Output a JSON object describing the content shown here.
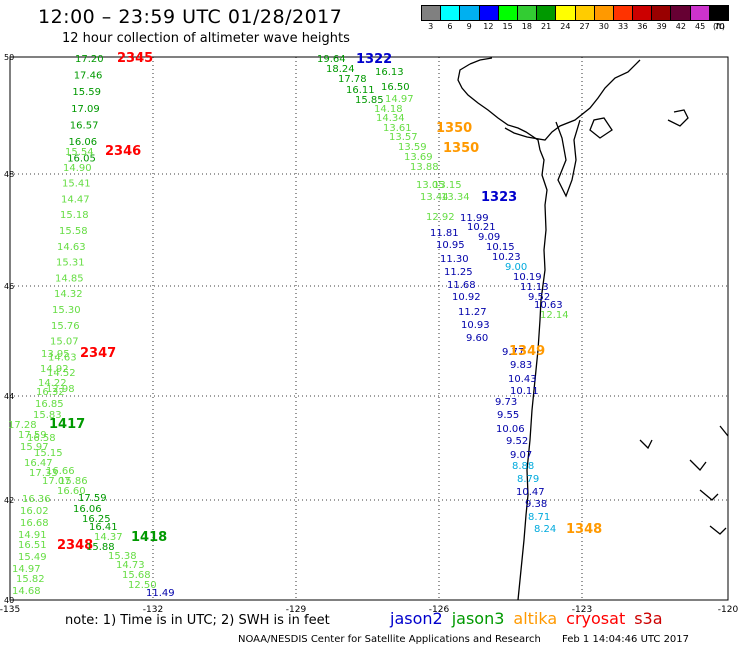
{
  "header": {
    "title": "12:00 – 23:59 UTC 01/28/2017",
    "subtitle": "12 hour collection of altimeter wave heights"
  },
  "color_scale": {
    "colors": [
      "#808080",
      "#00ffff",
      "#00b0f0",
      "#0000ff",
      "#00ff00",
      "#33cc33",
      "#009900",
      "#ffff00",
      "#ffcc00",
      "#ff9900",
      "#ff3300",
      "#cc0000",
      "#990000",
      "#660033",
      "#cc33cc",
      "#000000"
    ],
    "labels": [
      "3",
      "6",
      "9",
      "12",
      "15",
      "18",
      "21",
      "24",
      "27",
      "30",
      "33",
      "36",
      "39",
      "42",
      "45",
      "70",
      "(ft)"
    ]
  },
  "axes": {
    "lon_labels": [
      "-135",
      "-132",
      "-129",
      "-126",
      "-123",
      "-120"
    ],
    "lat_labels": [
      "50",
      "48",
      "46",
      "44",
      "42",
      "40"
    ]
  },
  "passes": [
    {
      "label": "2345",
      "satellite": "cryosat",
      "color": "#ff0000",
      "value_color": "#009900",
      "values": [
        "17.20",
        "17.46",
        "15.59",
        "17.09",
        "16.57",
        "16.06",
        "16.05"
      ]
    },
    {
      "label": "2346",
      "satellite": "cryosat",
      "color": "#ff0000",
      "value_color": "#66dd44",
      "values": [
        "15.54",
        "14.90",
        "15.41",
        "14.47",
        "15.18",
        "15.58",
        "14.63",
        "15.31",
        "14.85",
        "14.32",
        "15.30",
        "15.76",
        "15.07",
        "14.63",
        "14.52",
        "12.98"
      ]
    },
    {
      "label": "2347",
      "satellite": "cryosat",
      "color": "#ff0000",
      "value_color": "#66dd44",
      "values": [
        "13.95",
        "14.92",
        "14.22",
        "16.32",
        "16.85",
        "15.83",
        "17.28",
        "17.59",
        "16.58",
        "15.97",
        "15.15",
        "16.47",
        "17.33",
        "16.66",
        "17.07",
        "15.86",
        "16.60",
        "16.36",
        "16.02",
        "16.68"
      ]
    },
    {
      "label": "2348",
      "satellite": "cryosat",
      "color": "#ff0000",
      "value_color": "#66dd44",
      "values": [
        "14.91",
        "16.51",
        "15.49",
        "14.97",
        "15.82",
        "14.68"
      ]
    },
    {
      "label": "1417",
      "satellite": "jason3",
      "color": "#009900",
      "value_color": "#66dd44",
      "values": []
    },
    {
      "label": "1418",
      "satellite": "jason3",
      "color": "#009900",
      "value_color": "#66dd44",
      "values": [
        "17.59",
        "16.06",
        "16.25",
        "16.41",
        "14.37",
        "15.88",
        "15.38",
        "14.73",
        "15.68",
        "12.50"
      ]
    },
    {
      "label": "1322",
      "satellite": "jason2",
      "color": "#0000cc",
      "value_color": "#009900",
      "values": [
        "19.64",
        "18.24",
        "17.78",
        "16.11",
        "15.85"
      ]
    },
    {
      "label": "1350",
      "satellite": "altika",
      "color": "#ff9900",
      "value_color": "#66dd44",
      "values": [
        "16.13",
        "16.50",
        "14.97",
        "14.18",
        "14.34"
      ]
    },
    {
      "label": "1323",
      "satellite": "jason2",
      "color": "#0000cc",
      "value_color": "#0000aa",
      "values": [
        "11.99",
        "10.21",
        "9.09",
        "10.15",
        "10.23",
        "9.00",
        "10.19",
        "11.13",
        "9.52",
        "10.63",
        "11.81",
        "10.95",
        "11.30",
        "11.25",
        "11.68",
        "10.92",
        "11.27",
        "10.93",
        "9.60",
        "9.77",
        "9.83",
        "10.43",
        "10.11",
        "9.73",
        "9.55",
        "10.06",
        "9.52",
        "9.07",
        "8.88",
        "8.79",
        "10.47",
        "9.38",
        "8.71",
        "8.24",
        "11.49"
      ]
    },
    {
      "label": "1349",
      "satellite": "altika",
      "color": "#ff9900",
      "value_color": "#66dd44",
      "values": [
        "12.14"
      ]
    },
    {
      "label": "1348",
      "satellite": "altika",
      "color": "#ff9900",
      "value_color": "#00aadd",
      "values": []
    }
  ],
  "extra_values": {
    "near_1322": [
      "13.61",
      "13.57",
      "13.59",
      "13.69",
      "13.88",
      "13.05",
      "13.44",
      "13.15",
      "13.34",
      "12.92"
    ],
    "near_1322_color": "#66dd44"
  },
  "footer": {
    "note": "note: 1) Time is in UTC; 2) SWH is in feet",
    "legend": [
      {
        "name": "jason2",
        "color": "#0000cc"
      },
      {
        "name": "jason3",
        "color": "#009900"
      },
      {
        "name": "altika",
        "color": "#ff9900"
      },
      {
        "name": "cryosat",
        "color": "#ff0000"
      },
      {
        "name": "s3a",
        "color": "#cc0000"
      }
    ],
    "credit": "NOAA/NESDIS Center for Satellite Applications and Research",
    "timestamp": "Feb  1 14:04:46 UTC 2017"
  }
}
